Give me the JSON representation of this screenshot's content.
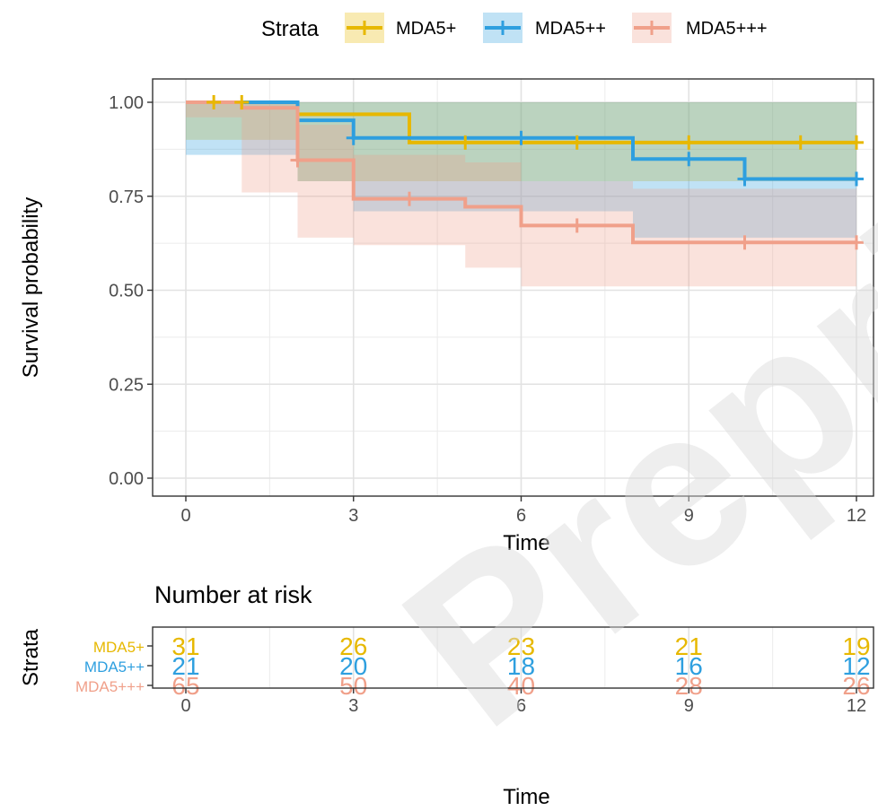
{
  "legend": {
    "title": "Strata",
    "items": [
      {
        "label": "MDA5+",
        "color": "#e7b800"
      },
      {
        "label": "MDA5++",
        "color": "#2e9fdf"
      },
      {
        "label": "MDA5+++",
        "color": "#f0a08a"
      }
    ]
  },
  "watermark": "Preprint",
  "chart_data": [
    {
      "type": "line",
      "subtype": "kaplan-meier step",
      "xlabel": "Time",
      "ylabel": "Survival probability",
      "xlim": [
        0,
        12
      ],
      "ylim": [
        0,
        1
      ],
      "xticks": [
        0,
        3,
        6,
        9,
        12
      ],
      "xtick_labels": [
        "0",
        "3",
        "6",
        "9",
        "12"
      ],
      "yticks": [
        0,
        0.25,
        0.5,
        0.75,
        1.0
      ],
      "ytick_labels": [
        "0.00",
        "0.25",
        "0.50",
        "0.75",
        "1.00"
      ],
      "grid": true,
      "legend_position": "top",
      "series": [
        {
          "name": "MDA5+",
          "color": "#e7b800",
          "steps": [
            [
              0,
              1.0
            ],
            [
              2,
              0.968
            ],
            [
              4,
              0.893
            ],
            [
              12,
              0.893
            ]
          ],
          "ci_lower": [
            [
              0,
              1.0
            ],
            [
              2,
              0.9
            ],
            [
              4,
              0.79
            ],
            [
              12,
              0.79
            ]
          ],
          "ci_upper": [
            [
              0,
              1.0
            ],
            [
              2,
              1.0
            ],
            [
              12,
              1.0
            ]
          ],
          "censor_times": [
            0.5,
            1,
            5,
            7,
            9,
            11,
            12
          ]
        },
        {
          "name": "MDA5++",
          "color": "#2e9fdf",
          "steps": [
            [
              0,
              1.0
            ],
            [
              2,
              0.952
            ],
            [
              3,
              0.905
            ],
            [
              8,
              0.849
            ],
            [
              10,
              0.796
            ],
            [
              12,
              0.796
            ]
          ],
          "ci_lower": [
            [
              0,
              1.0
            ],
            [
              2,
              0.86
            ],
            [
              3,
              0.79
            ],
            [
              8,
              0.71
            ],
            [
              10,
              0.64
            ],
            [
              12,
              0.64
            ]
          ],
          "ci_upper": [
            [
              0,
              1.0
            ],
            [
              12,
              1.0
            ]
          ],
          "censor_times": [
            3,
            6,
            9,
            10,
            12
          ]
        },
        {
          "name": "MDA5+++",
          "color": "#f0a08a",
          "steps": [
            [
              0,
              1.0
            ],
            [
              1,
              0.985
            ],
            [
              2,
              0.846
            ],
            [
              3,
              0.743
            ],
            [
              5,
              0.722
            ],
            [
              6,
              0.672
            ],
            [
              8,
              0.627
            ],
            [
              12,
              0.627
            ]
          ],
          "ci_lower": [
            [
              0,
              1.0
            ],
            [
              1,
              0.96
            ],
            [
              2,
              0.76
            ],
            [
              3,
              0.64
            ],
            [
              5,
              0.62
            ],
            [
              6,
              0.56
            ],
            [
              8,
              0.51
            ],
            [
              12,
              0.51
            ]
          ],
          "ci_upper": [
            [
              0,
              1.0
            ],
            [
              2,
              0.94
            ],
            [
              3,
              0.86
            ],
            [
              5,
              0.84
            ],
            [
              6,
              0.79
            ],
            [
              8,
              0.77
            ],
            [
              12,
              0.77
            ]
          ],
          "censor_times": [
            2,
            4,
            7,
            10,
            12
          ]
        }
      ]
    },
    {
      "type": "table",
      "title": "Number at risk",
      "xlabel": "Time",
      "ylabel": "Strata",
      "xlim": [
        0,
        12
      ],
      "times": [
        0,
        3,
        6,
        9,
        12
      ],
      "time_labels": [
        "0",
        "3",
        "6",
        "9",
        "12"
      ],
      "rows": [
        {
          "name": "MDA5+",
          "color": "#e7b800",
          "values": [
            "31",
            "26",
            "23",
            "21",
            "19"
          ]
        },
        {
          "name": "MDA5++",
          "color": "#2e9fdf",
          "values": [
            "21",
            "20",
            "18",
            "16",
            "12"
          ]
        },
        {
          "name": "MDA5+++",
          "color": "#f0a08a",
          "values": [
            "65",
            "50",
            "40",
            "28",
            "26"
          ]
        }
      ]
    }
  ]
}
